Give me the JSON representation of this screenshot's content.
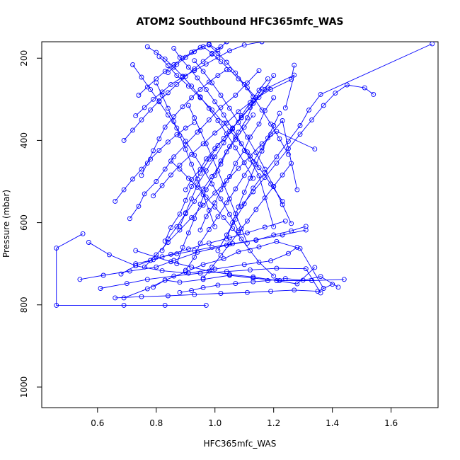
{
  "chart_data": {
    "type": "line",
    "title": "ATOM2 Southbound HFC365mfc_WAS",
    "xlabel": "HFC365mfc_WAS",
    "ylabel": "Pressure (mbar)",
    "xlim": [
      0.41,
      1.76
    ],
    "ylim": [
      1050,
      160
    ],
    "y_reversed": true,
    "grid": false,
    "marker": "open-circle",
    "series_color": "#0000ff",
    "x_ticks": [
      {
        "value": 0.6,
        "label": "0.6"
      },
      {
        "value": 0.8,
        "label": "0.8"
      },
      {
        "value": 1.0,
        "label": "1.0"
      },
      {
        "value": 1.2,
        "label": "1.2"
      },
      {
        "value": 1.4,
        "label": "1.4"
      },
      {
        "value": 1.6,
        "label": "1.6"
      }
    ],
    "y_ticks": [
      {
        "value": 200,
        "label": "200"
      },
      {
        "value": 400,
        "label": "400"
      },
      {
        "value": 600,
        "label": "600"
      },
      {
        "value": 800,
        "label": "800"
      },
      {
        "value": 1000,
        "label": "1000"
      }
    ],
    "profiles": [
      {
        "x": [
          0.97,
          0.83,
          0.69,
          0.46,
          0.46,
          0.55
        ],
        "y": [
          801,
          801,
          801,
          801,
          662,
          627
        ]
      },
      {
        "x": [
          0.79,
          0.83,
          0.88,
          0.96,
          1.05,
          1.13,
          1.22,
          1.33,
          1.44
        ],
        "y": [
          757,
          740,
          745,
          738,
          728,
          735,
          741,
          741,
          738
        ]
      },
      {
        "x": [
          0.54,
          0.62,
          0.71,
          0.8,
          0.86,
          0.94,
          1.04,
          1.14,
          1.23,
          1.31
        ],
        "y": [
          738,
          728,
          718,
          708,
          692,
          672,
          655,
          642,
          630,
          618
        ]
      },
      {
        "x": [
          0.57,
          0.64,
          0.73,
          0.82,
          0.91,
          1.0,
          1.1,
          1.19,
          1.25,
          1.28
        ],
        "y": [
          648,
          678,
          705,
          717,
          723,
          713,
          702,
          693,
          675,
          660
        ]
      },
      {
        "x": [
          0.66,
          0.75,
          0.84,
          0.93,
          1.02,
          1.11,
          1.19,
          1.27,
          1.35,
          1.4
        ],
        "y": [
          783,
          780,
          778,
          775,
          772,
          770,
          767,
          764,
          767,
          750
        ]
      },
      {
        "x": [
          0.61,
          0.7,
          0.77,
          0.86,
          0.95,
          1.04,
          1.12,
          1.21,
          1.31,
          1.36
        ],
        "y": [
          760,
          748,
          738,
          730,
          723,
          719,
          715,
          711,
          712,
          771
        ]
      },
      {
        "x": [
          0.69,
          0.77,
          0.83,
          0.9,
          0.96,
          1.03,
          1.08,
          1.15,
          1.21,
          1.29,
          1.37
        ],
        "y": [
          783,
          761,
          740,
          720,
          702,
          688,
          671,
          659,
          646,
          663,
          760
        ]
      },
      {
        "x": [
          0.73,
          0.8,
          0.85,
          0.92,
          0.98,
          1.05,
          1.13,
          1.21,
          1.28,
          1.34
        ],
        "y": [
          668,
          684,
          695,
          708,
          718,
          726,
          732,
          741,
          749,
          709
        ]
      },
      {
        "x": [
          0.68,
          0.73,
          0.79,
          0.85,
          0.91,
          0.98,
          1.05,
          1.11,
          1.17,
          1.24
        ],
        "y": [
          725,
          705,
          690,
          677,
          664,
          650,
          637,
          625,
          611,
          596
        ]
      },
      {
        "x": [
          0.73,
          0.78,
          0.82,
          0.87,
          0.93,
          0.99,
          1.06,
          1.14,
          1.2,
          1.26,
          1.31
        ],
        "y": [
          700,
          692,
          683,
          676,
          668,
          660,
          651,
          643,
          630,
          620,
          609
        ]
      },
      {
        "x": [
          0.88,
          0.92,
          0.96,
          1.01,
          1.07,
          1.13,
          1.18,
          1.24,
          1.3,
          1.36,
          1.42
        ],
        "y": [
          770,
          765,
          758,
          752,
          748,
          744,
          741,
          736,
          740,
          731,
          757
        ]
      },
      {
        "x": [
          0.71,
          0.74,
          0.76,
          0.8,
          0.83,
          0.86,
          0.9,
          0.94,
          0.98,
          1.02,
          1.07,
          1.11,
          1.15
        ],
        "y": [
          590,
          560,
          530,
          500,
          470,
          440,
          410,
          380,
          350,
          320,
          290,
          260,
          230
        ]
      },
      {
        "x": [
          0.87,
          0.89,
          0.91,
          0.93,
          0.95,
          0.97,
          1.0,
          1.02,
          1.05,
          1.08,
          1.11,
          1.13,
          1.16
        ],
        "y": [
          700,
          660,
          625,
          590,
          555,
          520,
          485,
          450,
          415,
          380,
          345,
          310,
          275
        ]
      },
      {
        "x": [
          0.82,
          0.84,
          0.87,
          0.9,
          0.93,
          0.96,
          0.99,
          1.02,
          1.04,
          1.07,
          1.1,
          1.13
        ],
        "y": [
          668,
          640,
          610,
          578,
          548,
          518,
          488,
          458,
          428,
          398,
          368,
          338
        ]
      },
      {
        "x": [
          0.95,
          0.97,
          1.0,
          1.02,
          1.05,
          1.07,
          1.1,
          1.12,
          1.15,
          1.17,
          1.2
        ],
        "y": [
          618,
          585,
          552,
          520,
          488,
          456,
          424,
          392,
          360,
          328,
          296
        ]
      },
      {
        "x": [
          0.9,
          0.93,
          0.95,
          0.98,
          1.01,
          1.04,
          1.07,
          1.1,
          1.13,
          1.16,
          1.19,
          1.23,
          1.28
        ],
        "y": [
          716,
          684,
          650,
          617,
          585,
          552,
          518,
          485,
          452,
          418,
          385,
          352,
          520
        ]
      },
      {
        "x": [
          0.76,
          0.8,
          0.84,
          0.88,
          0.92,
          0.96,
          1.0,
          1.04,
          1.08,
          1.12,
          1.16,
          1.21,
          1.34
        ],
        "y": [
          708,
          678,
          648,
          618,
          588,
          558,
          528,
          498,
          468,
          438,
          408,
          378,
          421
        ]
      },
      {
        "x": [
          0.79,
          0.82,
          0.85,
          0.88,
          0.92,
          0.96,
          1.0,
          1.04,
          1.08,
          1.13,
          1.19,
          1.26,
          1.27
        ],
        "y": [
          535,
          510,
          484,
          460,
          434,
          408,
          382,
          358,
          330,
          302,
          276,
          252,
          217
        ]
      },
      {
        "x": [
          0.83,
          0.85,
          0.88,
          0.9,
          0.92,
          0.95,
          0.98,
          1.01,
          1.05,
          1.09,
          1.13,
          1.17,
          1.2
        ],
        "y": [
          645,
          612,
          579,
          546,
          512,
          480,
          446,
          412,
          378,
          344,
          310,
          276,
          242
        ]
      },
      {
        "x": [
          1.01,
          1.04,
          1.07,
          1.1,
          1.13,
          1.17,
          1.21,
          1.25,
          1.29,
          1.32,
          1.36,
          1.74
        ],
        "y": [
          668,
          630,
          592,
          554,
          516,
          478,
          440,
          402,
          364,
          326,
          288,
          165
        ]
      },
      {
        "x": [
          1.09,
          1.13,
          1.17,
          1.21,
          1.25,
          1.29,
          1.33,
          1.37,
          1.41,
          1.45,
          1.51,
          1.54
        ],
        "y": [
          560,
          525,
          490,
          455,
          420,
          385,
          350,
          315,
          285,
          265,
          272,
          288
        ]
      },
      {
        "x": [
          0.9,
          0.92,
          0.95,
          0.97,
          1.0,
          1.03,
          1.06,
          1.09,
          1.12,
          1.15,
          1.18,
          1.27,
          1.24
        ],
        "y": [
          520,
          495,
          470,
          445,
          420,
          395,
          370,
          345,
          320,
          295,
          272,
          241,
          321
        ]
      },
      {
        "x": [
          0.73,
          0.76,
          0.79,
          0.82,
          0.85,
          0.89,
          0.93,
          0.97,
          1.01,
          1.05,
          1.1,
          1.16
        ],
        "y": [
          340,
          320,
          300,
          282,
          264,
          246,
          230,
          214,
          198,
          182,
          168,
          160
        ]
      },
      {
        "x": [
          0.69,
          0.72,
          0.75,
          0.78,
          0.81,
          0.84,
          0.87,
          0.9,
          0.93,
          0.96,
          0.99,
          1.02
        ],
        "y": [
          400,
          375,
          350,
          326,
          304,
          284,
          264,
          244,
          226,
          208,
          190,
          172
        ]
      },
      {
        "x": [
          0.74,
          0.77,
          0.8,
          0.83,
          0.86,
          0.89,
          0.92,
          0.95,
          0.98,
          1.01,
          1.04
        ],
        "y": [
          290,
          270,
          250,
          232,
          216,
          200,
          186,
          174,
          166,
          180,
          160
        ]
      },
      {
        "x": [
          0.84,
          0.87,
          0.9,
          0.93,
          0.96,
          0.99,
          1.02,
          1.05,
          1.08,
          1.11,
          1.14
        ],
        "y": [
          235,
          215,
          198,
          184,
          172,
          188,
          208,
          228,
          250,
          272,
          296
        ]
      },
      {
        "x": [
          0.77,
          0.8,
          0.83,
          0.86,
          0.89,
          0.92,
          0.95,
          0.98,
          1.01,
          1.04,
          1.07,
          1.1,
          1.13
        ],
        "y": [
          172,
          186,
          202,
          222,
          244,
          268,
          294,
          322,
          352,
          384,
          418,
          454,
          492
        ]
      },
      {
        "x": [
          0.81,
          0.84,
          0.87,
          0.91,
          0.95,
          0.99,
          1.03,
          1.07,
          1.11,
          1.15,
          1.19,
          1.23
        ],
        "y": [
          196,
          218,
          242,
          268,
          296,
          326,
          358,
          392,
          428,
          466,
          506,
          548
        ]
      },
      {
        "x": [
          0.86,
          0.88,
          0.91,
          0.94,
          0.97,
          1.0,
          1.03,
          1.06,
          1.09,
          1.12,
          1.15,
          1.2
        ],
        "y": [
          176,
          198,
          222,
          248,
          276,
          306,
          338,
          372,
          408,
          446,
          486,
          610
        ]
      },
      {
        "x": [
          0.72,
          0.75,
          0.78,
          0.81,
          0.84,
          0.87,
          0.9,
          0.93,
          0.96,
          0.99,
          1.02,
          1.05,
          1.08
        ],
        "y": [
          216,
          246,
          276,
          306,
          338,
          370,
          402,
          436,
          470,
          506,
          542,
          580,
          620
        ]
      },
      {
        "x": [
          0.93,
          0.96,
          0.99,
          1.02,
          1.05,
          1.08,
          1.11,
          1.14,
          1.17,
          1.2,
          1.23,
          1.26
        ],
        "y": [
          206,
          232,
          260,
          290,
          322,
          356,
          392,
          430,
          470,
          512,
          556,
          602
        ]
      },
      {
        "x": [
          0.98,
          1.01,
          1.04,
          1.07,
          1.1,
          1.13,
          1.16,
          1.19,
          1.22,
          1.25
        ],
        "y": [
          168,
          188,
          210,
          236,
          264,
          294,
          326,
          360,
          396,
          434
        ]
      },
      {
        "x": [
          0.75,
          0.77,
          0.79,
          0.81,
          0.83,
          0.86,
          0.89,
          0.92,
          0.95,
          0.98,
          1.01,
          1.04
        ],
        "y": [
          485,
          455,
          425,
          396,
          368,
          342,
          318,
          296,
          276,
          258,
          242,
          228
        ]
      },
      {
        "x": [
          0.88,
          0.9,
          0.92,
          0.94,
          0.97,
          1.0,
          1.03,
          1.06,
          1.09,
          1.12,
          1.15,
          1.18
        ],
        "y": [
          610,
          576,
          542,
          508,
          474,
          440,
          406,
          372,
          340,
          308,
          278,
          250
        ]
      },
      {
        "x": [
          1.04,
          1.06,
          1.08,
          1.1,
          1.12,
          1.14,
          1.16,
          1.18,
          1.2,
          1.22
        ],
        "y": [
          640,
          600,
          562,
          526,
          492,
          458,
          426,
          394,
          364,
          334
        ]
      },
      {
        "x": [
          0.66,
          0.69,
          0.72,
          0.75,
          0.78,
          0.81,
          0.84,
          0.87,
          0.9,
          0.93
        ],
        "y": [
          548,
          520,
          494,
          470,
          446,
          424,
          404,
          386,
          370,
          356
        ]
      },
      {
        "x": [
          0.96,
          0.99,
          1.02,
          1.05,
          1.08,
          1.11,
          1.14,
          1.17,
          1.2,
          1.23,
          1.26
        ],
        "y": [
          735,
          708,
          680,
          652,
          624,
          596,
          568,
          540,
          512,
          484,
          456
        ]
      },
      {
        "x": [
          0.8,
          0.82,
          0.84,
          0.86,
          0.88,
          0.9,
          0.92,
          0.94,
          0.96,
          0.98,
          1.0
        ],
        "y": [
          260,
          290,
          322,
          354,
          388,
          422,
          458,
          494,
          532,
          570,
          610
        ]
      },
      {
        "x": [
          0.91,
          0.93,
          0.95,
          0.97,
          0.99,
          1.01,
          1.03,
          1.05,
          1.07,
          1.09,
          1.11
        ],
        "y": [
          315,
          345,
          376,
          408,
          440,
          474,
          508,
          542,
          578,
          614,
          650
        ]
      },
      {
        "x": [
          0.85,
          0.88,
          0.91,
          0.94,
          0.97,
          1.0,
          1.03,
          1.06,
          1.09,
          1.12,
          1.15,
          1.2
        ],
        "y": [
          450,
          470,
          492,
          514,
          538,
          562,
          588,
          614,
          640,
          668,
          696,
          730
        ]
      }
    ]
  }
}
